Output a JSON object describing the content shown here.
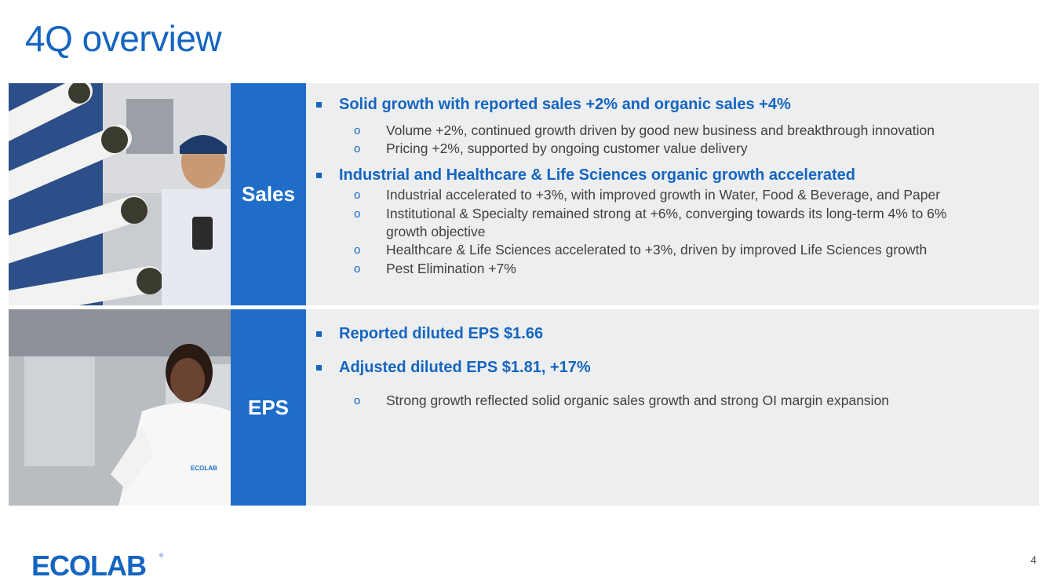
{
  "title": "4Q overview",
  "sales": {
    "label": "Sales",
    "bullets": [
      {
        "text": "Solid growth with reported sales +2% and organic sales +4%",
        "subs": [
          "Volume +2%, continued growth driven by good new business and breakthrough innovation",
          "Pricing +2%, supported by ongoing customer value delivery"
        ]
      },
      {
        "text": "Industrial and Healthcare & Life Sciences organic growth accelerated",
        "subs": [
          "Industrial accelerated to +3%, with improved growth in Water, Food & Beverage, and Paper",
          "Institutional & Specialty remained strong at +6%, converging towards its long-term 4% to 6%",
          "growth objective",
          "Healthcare & Life Sciences accelerated to +3%, driven by improved Life Sciences growth",
          "Pest Elimination +7%"
        ]
      }
    ]
  },
  "eps": {
    "label": "EPS",
    "bullets": [
      {
        "text": "Reported diluted EPS $1.66"
      },
      {
        "text": "Adjusted diluted EPS $1.81, +17%"
      }
    ],
    "subs": [
      "Strong growth reflected solid organic sales growth and strong OI margin expansion"
    ]
  },
  "footer": {
    "logo_text": "ECOLAB",
    "page_number": "4"
  },
  "colors": {
    "title_blue": "#1565c0",
    "label_bg": "#1f6dc9",
    "panel_bg": "#eceeef",
    "body_text": "#404040"
  },
  "icons": [
    "square-bullet-icon",
    "circle-bullet-icon",
    "ecolab-logo"
  ]
}
